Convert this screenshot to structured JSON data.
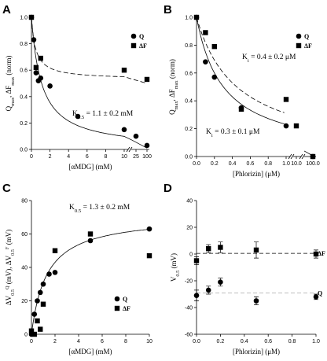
{
  "chart_data": [
    {
      "panel": "A",
      "type": "scatter",
      "xlabel": "[αMDG] (mM)",
      "ylabel": "Q_max, ΔF_max (norm)",
      "x_scale": "broken-linear",
      "x_segments": [
        [
          0,
          10
        ],
        [
          25,
          25
        ],
        [
          100,
          100
        ]
      ],
      "xticks": [
        "0",
        "2",
        "4",
        "6",
        "8",
        "10",
        "25",
        "100"
      ],
      "ylim": [
        0.0,
        1.0
      ],
      "yticks": [
        "0.0",
        "0.2",
        "0.4",
        "0.6",
        "0.8",
        "1.0"
      ],
      "legend": [
        "Q",
        "ΔF"
      ],
      "legend_position": "top-right",
      "annotation": "K0.5 = 1.1 ± 0.2 mM",
      "series": [
        {
          "name": "Q",
          "marker": "circle",
          "fit": "solid",
          "x": [
            0,
            0.25,
            0.5,
            0.75,
            1,
            2,
            5,
            10,
            25,
            100
          ],
          "y": [
            1.0,
            0.83,
            0.58,
            0.52,
            0.54,
            0.48,
            0.25,
            0.15,
            0.1,
            0.03
          ]
        },
        {
          "name": "ΔF",
          "marker": "square",
          "fit": "dashed",
          "x": [
            0,
            0.5,
            1,
            10,
            100
          ],
          "y": [
            1.0,
            0.62,
            0.69,
            0.6,
            0.53
          ]
        }
      ]
    },
    {
      "panel": "B",
      "type": "scatter",
      "xlabel": "[Phlorizin] (μM)",
      "ylabel": "Q_max, ΔF_max (norm)",
      "x_scale": "broken-linear",
      "x_segments": [
        [
          0,
          1.0
        ],
        [
          10.0,
          10.0
        ],
        [
          100.0,
          100.0
        ]
      ],
      "xticks": [
        "0.0",
        "0.2",
        "0.4",
        "0.6",
        "0.8",
        "1.0",
        "10.0",
        "100.0"
      ],
      "ylim": [
        0.0,
        1.0
      ],
      "yticks": [
        "0.0",
        "0.2",
        "0.4",
        "0.6",
        "0.8",
        "1.0"
      ],
      "legend": [
        "Q",
        "ΔF"
      ],
      "legend_position": "top-right",
      "annotations": [
        "Ki = 0.4 ± 0.2 μM",
        "Ki = 0.3 ± 0.1 μM"
      ],
      "series": [
        {
          "name": "Q",
          "marker": "circle",
          "fit": "solid",
          "x": [
            0,
            0.1,
            0.2,
            0.5,
            1.0,
            100.0
          ],
          "y": [
            1.0,
            0.68,
            0.57,
            0.35,
            0.22,
            0.0
          ]
        },
        {
          "name": "ΔF",
          "marker": "square",
          "fit": "dashed",
          "x": [
            0,
            0.1,
            0.2,
            0.5,
            1.0,
            10.0,
            100.0
          ],
          "y": [
            1.0,
            0.89,
            0.79,
            0.34,
            0.41,
            0.22,
            0.0
          ]
        }
      ]
    },
    {
      "panel": "C",
      "type": "scatter",
      "xlabel": "[αMDG] (mM)",
      "ylabel": "ΔV0.5 Q (mV), ΔV0.5 F (mV)",
      "xlim": [
        0,
        10
      ],
      "xticks": [
        "0",
        "2",
        "4",
        "6",
        "8",
        "10"
      ],
      "ylim": [
        0,
        80
      ],
      "yticks": [
        "0",
        "20",
        "40",
        "60",
        "80"
      ],
      "legend": [
        "Q",
        "ΔF"
      ],
      "legend_position": "lower-right",
      "annotation": "K0.5 = 1.3 ± 0.2  mM",
      "series": [
        {
          "name": "Q",
          "marker": "circle",
          "fit": "solid",
          "x": [
            0,
            0.25,
            0.5,
            0.75,
            1.0,
            1.5,
            2.0,
            5.0,
            10.0
          ],
          "y": [
            0,
            12,
            20,
            25,
            30,
            36,
            37,
            56,
            63
          ]
        },
        {
          "name": "ΔF",
          "marker": "square",
          "x": [
            0,
            0.25,
            0.5,
            0.75,
            1.0,
            2.0,
            5.0,
            10.0
          ],
          "y": [
            2,
            0,
            8,
            3,
            18,
            50,
            60,
            47
          ]
        }
      ]
    },
    {
      "panel": "D",
      "type": "scatter",
      "xlabel": "[Phlorizin] (μM)",
      "ylabel": "V0.5 (mV)",
      "xlim": [
        0,
        1.0
      ],
      "xticks": [
        "0.0",
        "0.2",
        "0.4",
        "0.6",
        "0.8",
        "1.0"
      ],
      "ylim": [
        -60,
        40
      ],
      "yticks": [
        "-60",
        "-40",
        "-20",
        "0",
        "20",
        "40"
      ],
      "series_labels": [
        "ΔF",
        "Q"
      ],
      "series": [
        {
          "name": "ΔF",
          "marker": "square",
          "fit": "dashed",
          "x": [
            0,
            0.1,
            0.2,
            0.5,
            1.0
          ],
          "y": [
            -5,
            4,
            5,
            3,
            0
          ],
          "err": [
            3,
            3,
            4,
            6,
            3
          ]
        },
        {
          "name": "Q",
          "marker": "circle",
          "fit": "dashed",
          "x": [
            0,
            0.1,
            0.2,
            0.5,
            1.0
          ],
          "y": [
            -31,
            -27,
            -21,
            -35,
            -32
          ],
          "err": [
            4,
            3,
            3,
            3,
            2
          ]
        }
      ]
    }
  ]
}
